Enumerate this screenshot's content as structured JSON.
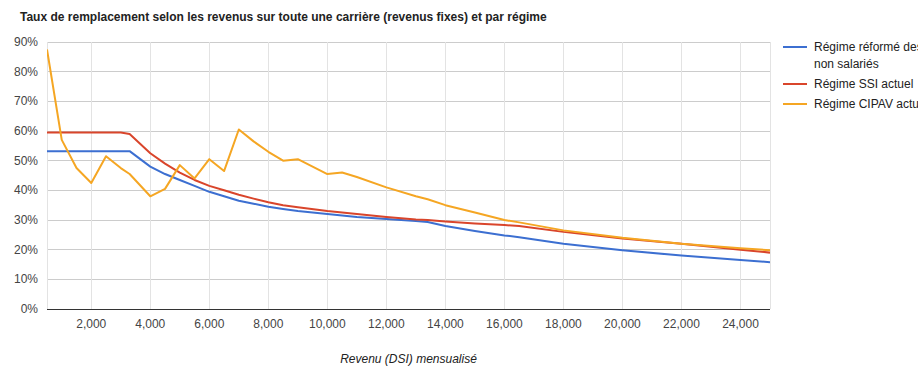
{
  "chart_data": {
    "type": "line",
    "title": "Taux de remplacement selon les revenus sur toute une carrière (revenus fixes) et par régime",
    "x_label": "Revenu (DSI) mensualisé",
    "x": [
      500,
      1000,
      1500,
      2000,
      2500,
      3000,
      3300,
      4000,
      4500,
      5000,
      5500,
      6000,
      6500,
      7000,
      7500,
      8000,
      8500,
      9000,
      10000,
      10500,
      11000,
      12000,
      13000,
      13400,
      14000,
      15000,
      16000,
      16500,
      18000,
      20000,
      22000,
      24000,
      25000
    ],
    "series": [
      {
        "name": "Régime réformé des non salariés",
        "color": "#3c6fd1",
        "values": [
          53.2,
          53.2,
          53.2,
          53.2,
          53.2,
          53.2,
          53.2,
          48,
          45.5,
          43.5,
          41.5,
          39.5,
          38,
          36.5,
          35.5,
          34.5,
          33.7,
          33,
          32,
          31.5,
          31,
          30.3,
          29.7,
          29.3,
          28,
          26.3,
          24.8,
          24.2,
          22,
          19.8,
          18,
          16.5,
          15.8
        ]
      },
      {
        "name": "Régime SSI actuel",
        "color": "#d9452b",
        "values": [
          59.5,
          59.5,
          59.5,
          59.5,
          59.5,
          59.5,
          59,
          52.5,
          49,
          46,
          43.5,
          41.5,
          40,
          38.5,
          37.2,
          36,
          35,
          34.3,
          33,
          32.5,
          32,
          31,
          30.2,
          30,
          29.5,
          28.8,
          28.3,
          28,
          26,
          23.8,
          22,
          20,
          19
        ]
      },
      {
        "name": "Régime CIPAV actuel",
        "color": "#f5a623",
        "values": [
          87.5,
          57,
          47.5,
          42.5,
          51.5,
          47.5,
          45.5,
          38,
          40.5,
          48.5,
          44,
          50.5,
          46.5,
          60.5,
          56.5,
          53,
          50,
          50.5,
          45.5,
          46,
          44.5,
          41,
          38,
          37,
          35,
          32.5,
          30,
          29.2,
          26.5,
          24,
          22,
          20.5,
          19.8
        ]
      }
    ],
    "xlim": [
      500,
      25000
    ],
    "xticks": [
      {
        "value": 2000,
        "label": "2,000"
      },
      {
        "value": 4000,
        "label": "4,000"
      },
      {
        "value": 6000,
        "label": "6,000"
      },
      {
        "value": 8000,
        "label": "8,000"
      },
      {
        "value": 10000,
        "label": "10,000"
      },
      {
        "value": 12000,
        "label": "12,000"
      },
      {
        "value": 14000,
        "label": "14,000"
      },
      {
        "value": 16000,
        "label": "16,000"
      },
      {
        "value": 18000,
        "label": "18,000"
      },
      {
        "value": 20000,
        "label": "20,000"
      },
      {
        "value": 22000,
        "label": "22,000"
      },
      {
        "value": 24000,
        "label": "24,000"
      }
    ],
    "ylim": [
      0,
      90
    ],
    "yticks": [
      {
        "value": 0,
        "label": "0%"
      },
      {
        "value": 10,
        "label": "10%"
      },
      {
        "value": 20,
        "label": "20%"
      },
      {
        "value": 30,
        "label": "30%"
      },
      {
        "value": 40,
        "label": "40%"
      },
      {
        "value": 50,
        "label": "50%"
      },
      {
        "value": 60,
        "label": "60%"
      },
      {
        "value": 70,
        "label": "70%"
      },
      {
        "value": 80,
        "label": "80%"
      },
      {
        "value": 90,
        "label": "90%"
      }
    ],
    "grid": true,
    "legend": "right"
  }
}
